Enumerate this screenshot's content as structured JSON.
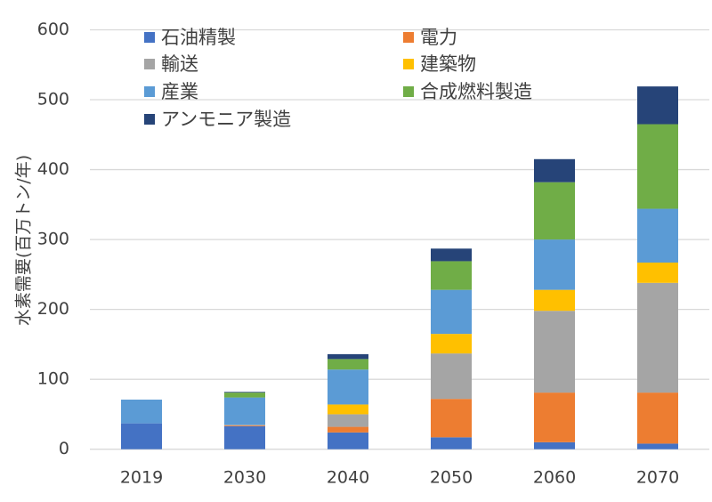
{
  "chart_data": {
    "type": "bar",
    "stacked": true,
    "title": "",
    "xlabel": "",
    "ylabel": "水素需要(百万トン/年)",
    "ylim": [
      0,
      600
    ],
    "yticks": [
      0,
      100,
      200,
      300,
      400,
      500,
      600
    ],
    "grid": true,
    "legend_position": "top",
    "categories": [
      "2019",
      "2030",
      "2040",
      "2050",
      "2060",
      "2070"
    ],
    "series": [
      {
        "name": "石油精製",
        "color": "#4472C4",
        "values": [
          37,
          33,
          24,
          17,
          10,
          8
        ]
      },
      {
        "name": "電力",
        "color": "#ED7D31",
        "values": [
          0,
          1,
          8,
          55,
          71,
          73
        ]
      },
      {
        "name": "輸送",
        "color": "#A5A5A5",
        "values": [
          0,
          1,
          18,
          65,
          117,
          157
        ]
      },
      {
        "name": "建築物",
        "color": "#FFC000",
        "values": [
          0,
          0,
          14,
          28,
          30,
          29
        ]
      },
      {
        "name": "産業",
        "color": "#5B9BD5",
        "values": [
          34,
          39,
          50,
          63,
          72,
          77
        ]
      },
      {
        "name": "合成燃料製造",
        "color": "#70AD47",
        "values": [
          0,
          7,
          15,
          41,
          82,
          121
        ]
      },
      {
        "name": "アンモニア製造",
        "color": "#264478",
        "values": [
          0,
          1,
          7,
          18,
          33,
          54
        ]
      }
    ]
  }
}
